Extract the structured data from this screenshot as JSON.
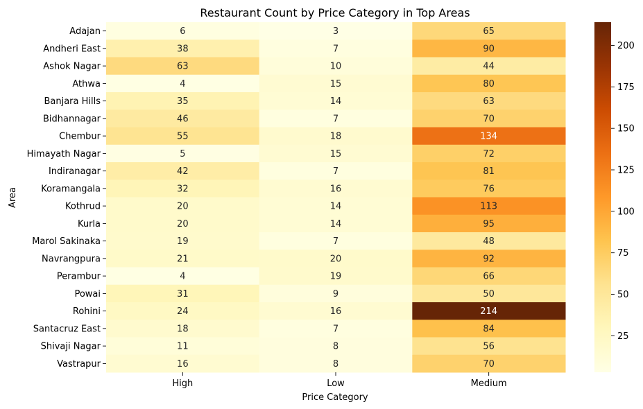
{
  "chart_data": {
    "type": "heatmap",
    "title": "Restaurant Count by Price Category in Top Areas",
    "xlabel": "Price Category",
    "ylabel": "Area",
    "columns": [
      "High",
      "Low",
      "Medium"
    ],
    "rows": [
      "Adajan",
      "Andheri East",
      "Ashok Nagar",
      "Athwa",
      "Banjara Hills",
      "Bidhannagar",
      "Chembur",
      "Himayath Nagar",
      "Indiranagar",
      "Koramangala",
      "Kothrud",
      "Kurla",
      "Marol Sakinaka",
      "Navrangpura",
      "Perambur",
      "Powai",
      "Rohini",
      "Santacruz East",
      "Shivaji Nagar",
      "Vastrapur"
    ],
    "values": [
      [
        6,
        3,
        65
      ],
      [
        38,
        7,
        90
      ],
      [
        63,
        10,
        44
      ],
      [
        4,
        15,
        80
      ],
      [
        35,
        14,
        63
      ],
      [
        46,
        7,
        70
      ],
      [
        55,
        18,
        134
      ],
      [
        5,
        15,
        72
      ],
      [
        42,
        7,
        81
      ],
      [
        32,
        16,
        76
      ],
      [
        20,
        14,
        113
      ],
      [
        20,
        14,
        95
      ],
      [
        19,
        7,
        48
      ],
      [
        21,
        20,
        92
      ],
      [
        4,
        19,
        66
      ],
      [
        31,
        9,
        50
      ],
      [
        24,
        16,
        214
      ],
      [
        18,
        7,
        84
      ],
      [
        11,
        8,
        56
      ],
      [
        16,
        8,
        70
      ]
    ],
    "colorbar": {
      "min": 3,
      "max": 214,
      "ticks": [
        25,
        50,
        75,
        100,
        125,
        150,
        175,
        200
      ],
      "colormap": "YlOrBr"
    },
    "annotations": true
  }
}
